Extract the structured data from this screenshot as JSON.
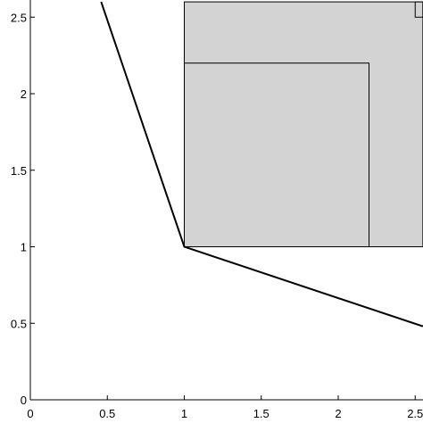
{
  "chart_data": {
    "type": "line",
    "title": "",
    "xlabel": "",
    "ylabel": "",
    "xlim": [
      0,
      2.55
    ],
    "ylim": [
      0,
      2.6
    ],
    "x_ticks": [
      "0",
      "0.5",
      "1",
      "1.5",
      "2",
      "2.5"
    ],
    "y_ticks": [
      "0",
      "0.5",
      "1",
      "1.5",
      "2",
      "2.5"
    ],
    "grid": false,
    "legend": "none",
    "series": [
      {
        "x": [
          0.46,
          1.0,
          2.55
        ],
        "y": [
          2.6,
          1.0,
          0.48
        ]
      }
    ],
    "regions": [
      {
        "fill": "#d3d3d3",
        "x": [
          1.0,
          2.55
        ],
        "y": [
          1.0,
          2.6
        ]
      }
    ],
    "region_outlines": [
      {
        "x": [
          1.0,
          2.2
        ],
        "y": [
          1.0,
          2.2
        ]
      },
      {
        "x": [
          2.5,
          2.55
        ],
        "y": [
          2.5,
          2.6
        ]
      }
    ],
    "colors": {
      "line": "#000000",
      "region_fill": "#d3d3d3",
      "region_edge": "#000000"
    }
  }
}
